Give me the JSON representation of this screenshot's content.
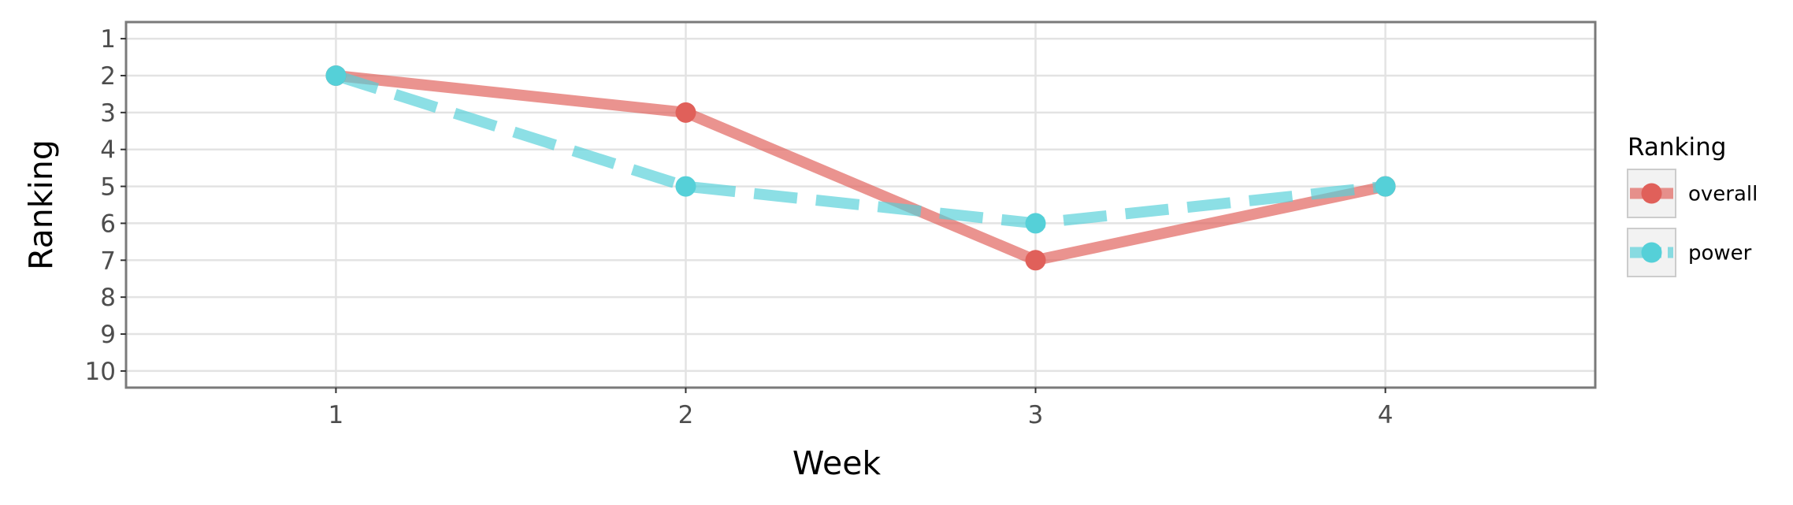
{
  "chart_data": {
    "type": "line",
    "x": [
      1,
      2,
      3,
      4
    ],
    "xlabel": "Week",
    "ylabel": "Ranking",
    "xlim": [
      0.4,
      4.6
    ],
    "ylim": [
      10.45,
      0.55
    ],
    "y_reversed": true,
    "x_ticks": [
      "1",
      "2",
      "3",
      "4"
    ],
    "y_ticks": [
      "1",
      "2",
      "3",
      "4",
      "5",
      "6",
      "7",
      "8",
      "9",
      "10"
    ],
    "grid": true,
    "legend": {
      "title": "Ranking",
      "position": "right"
    },
    "series": [
      {
        "name": "overall",
        "values": [
          2,
          3,
          7,
          5
        ],
        "color": "#e0605a",
        "line_style": "solid"
      },
      {
        "name": "power",
        "values": [
          2,
          5,
          6,
          5
        ],
        "color": "#55d0d8",
        "line_style": "dashed"
      }
    ]
  }
}
